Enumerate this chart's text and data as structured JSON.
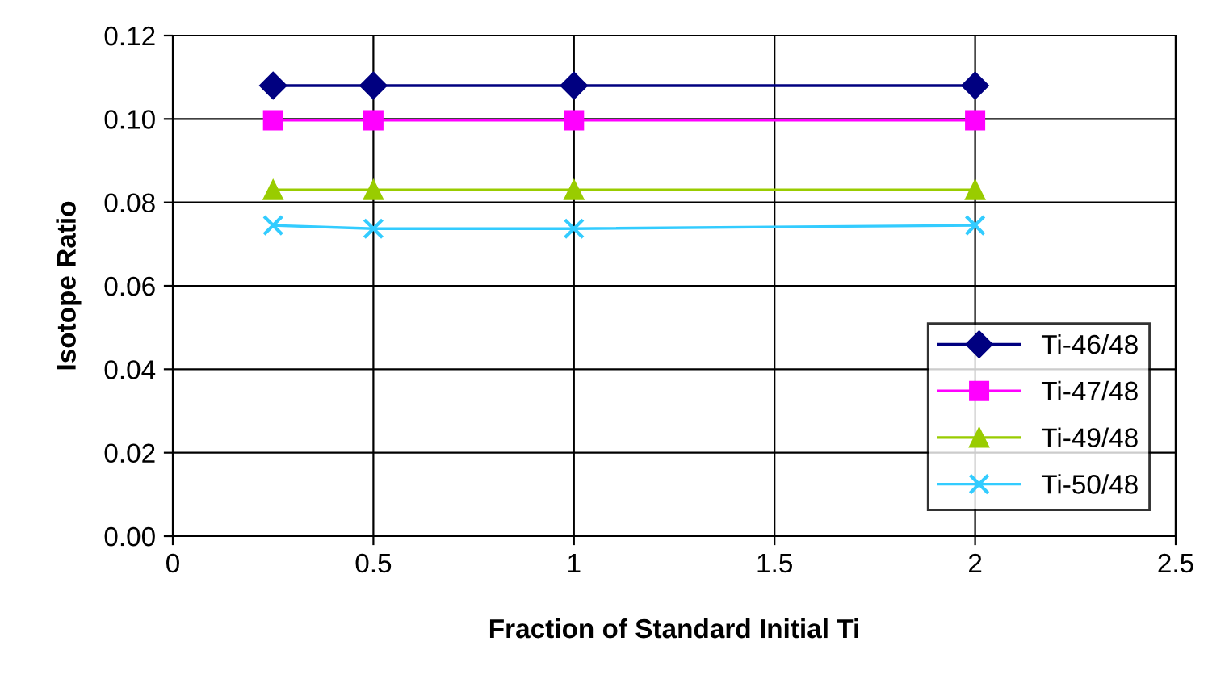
{
  "chart_data": {
    "type": "line",
    "xlabel": "Fraction of Standard Initial Ti",
    "ylabel": "Isotope Ratio",
    "x": [
      0.25,
      0.5,
      1,
      2
    ],
    "series": [
      {
        "name": "Ti-46/48",
        "color": "#000080",
        "marker": "diamond",
        "values": [
          0.108,
          0.108,
          0.108,
          0.108
        ]
      },
      {
        "name": "Ti-47/48",
        "color": "#ff00ff",
        "marker": "square",
        "values": [
          0.0997,
          0.0997,
          0.0997,
          0.0997
        ]
      },
      {
        "name": "Ti-49/48",
        "color": "#99cc00",
        "marker": "triangle",
        "values": [
          0.083,
          0.083,
          0.083,
          0.083
        ]
      },
      {
        "name": "Ti-50/48",
        "color": "#33ccff",
        "marker": "cross",
        "values": [
          0.0745,
          0.0737,
          0.0737,
          0.0745
        ]
      }
    ],
    "xlim": [
      0,
      2.5
    ],
    "xticks": [
      0,
      0.5,
      1,
      1.5,
      2,
      2.5
    ],
    "ylim": [
      0,
      0.12
    ],
    "yticks": [
      {
        "value": 0,
        "label": "0.00"
      },
      {
        "value": 0.02,
        "label": "0.02"
      },
      {
        "value": 0.04,
        "label": "0.04"
      },
      {
        "value": 0.06,
        "label": "0.06"
      },
      {
        "value": 0.08,
        "label": "0.08"
      },
      {
        "value": 0.1,
        "label": "0.10"
      },
      {
        "value": 0.12,
        "label": "0.12"
      }
    ],
    "grid": true,
    "legend": "bottom right",
    "line_style": "solid"
  }
}
